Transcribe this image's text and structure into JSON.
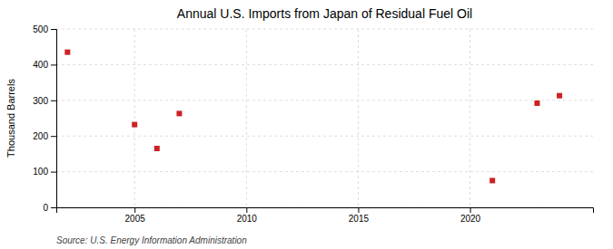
{
  "chart_data": {
    "type": "scatter",
    "title": "Annual U.S. Imports from Japan of Residual Fuel Oil",
    "ylabel": "Thousand Barrels",
    "annotations": [
      "Source: U.S. Energy Information Administration"
    ],
    "x": [
      2002,
      2005,
      2006,
      2007,
      2021,
      2023,
      2024
    ],
    "values": [
      435,
      232,
      165,
      263,
      75,
      292,
      313
    ],
    "color": "#CC2222",
    "marker": "square",
    "xlim": [
      2001.5,
      2025.5
    ],
    "ylim": [
      0,
      500
    ],
    "xticks": [
      2005,
      2010,
      2015,
      2020
    ],
    "yticks": [
      0,
      100,
      200,
      300,
      400,
      500
    ],
    "grid": true
  }
}
